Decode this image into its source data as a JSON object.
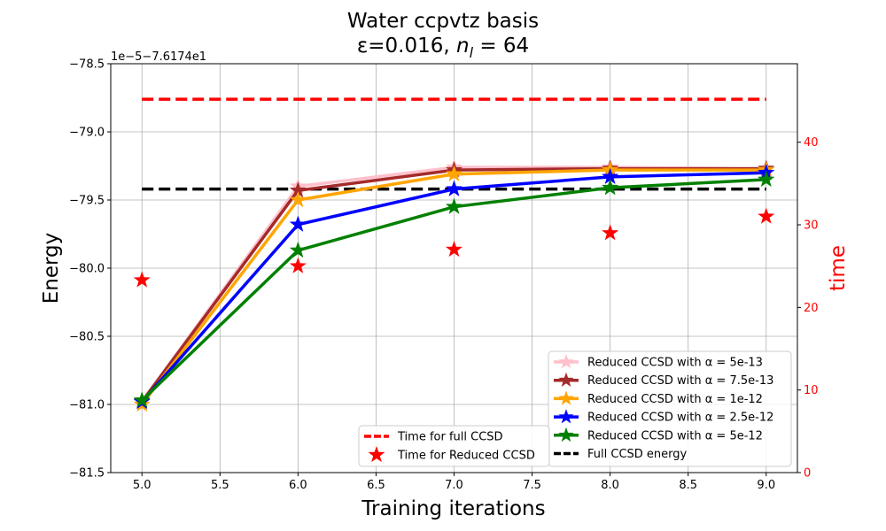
{
  "chart_data": {
    "type": "line",
    "title_line1": "Water ccpvtz basis",
    "title_line2_prefix": "ε=0.016, ",
    "title_line2_var": "n",
    "title_line2_sub": "l",
    "title_line2_suffix": " = 64",
    "xlabel": "Training iterations",
    "ylabel": "Energy",
    "ylabel_right": "time",
    "offset_text": "1e−5−7.6174e1",
    "xlim": [
      4.8,
      9.2
    ],
    "ylim": [
      -81.5,
      -78.5
    ],
    "ylim_right": [
      0,
      49.5
    ],
    "xticks": [
      5.0,
      5.5,
      6.0,
      6.5,
      7.0,
      7.5,
      8.0,
      8.5,
      9.0
    ],
    "xtick_labels": [
      "5.0",
      "5.5",
      "6.0",
      "6.5",
      "7.0",
      "7.5",
      "8.0",
      "8.5",
      "9.0"
    ],
    "yticks": [
      -81.5,
      -81.0,
      -80.5,
      -80.0,
      -79.5,
      -79.0,
      -78.5
    ],
    "ytick_labels": [
      "−81.5",
      "−81.0",
      "−80.5",
      "−80.0",
      "−79.5",
      "−79.0",
      "−78.5"
    ],
    "yticks_right": [
      0,
      10,
      20,
      30,
      40
    ],
    "ytick_labels_right": [
      "0",
      "10",
      "20",
      "30",
      "40"
    ],
    "x": [
      5,
      6,
      7,
      8,
      9
    ],
    "series": [
      {
        "name": "Reduced CCSD with α = 5e-13",
        "color": "#ffc0cb",
        "values": [
          -80.98,
          -79.4,
          -79.26,
          -79.26,
          -79.27
        ]
      },
      {
        "name": "Reduced CCSD with α = 7.5e-13",
        "color": "#a52a2a",
        "values": [
          -80.98,
          -79.43,
          -79.28,
          -79.27,
          -79.27
        ]
      },
      {
        "name": "Reduced CCSD with α = 1e-12",
        "color": "#ffa500",
        "values": [
          -81.0,
          -79.5,
          -79.31,
          -79.28,
          -79.28
        ]
      },
      {
        "name": "Reduced CCSD with α = 2.5e-12",
        "color": "#0000ff",
        "values": [
          -80.98,
          -79.68,
          -79.42,
          -79.33,
          -79.3
        ]
      },
      {
        "name": "Reduced CCSD with α = 5e-12",
        "color": "#008000",
        "values": [
          -80.97,
          -79.87,
          -79.55,
          -79.41,
          -79.35
        ]
      }
    ],
    "full_ccsd_energy": {
      "name": "Full CCSD energy",
      "color": "#000000",
      "value": -79.42
    },
    "time_full_ccsd": {
      "name": "Time for full CCSD",
      "color": "#ff0000",
      "value": 45.2
    },
    "time_reduced_ccsd": {
      "name": "Time for Reduced CCSD",
      "color": "#ff0000",
      "values": [
        23.3,
        25.0,
        27.0,
        29.0,
        31.0
      ]
    },
    "legend_right_location": "lower-right",
    "legend_center_location": "lower-center",
    "grid": true
  }
}
